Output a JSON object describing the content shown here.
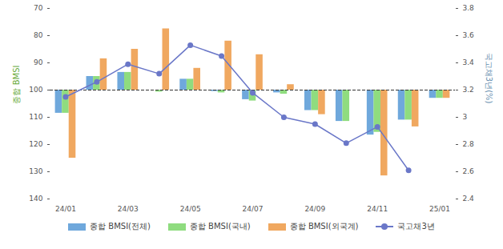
{
  "chart_data": {
    "type": "bar",
    "y_label": "종합 BMSI",
    "y2_label": "국고채3년(%)",
    "categories": [
      "24/01",
      null,
      "24/03",
      null,
      "24/05",
      null,
      "24/07",
      null,
      "24/09",
      null,
      "24/11",
      null,
      "25/01"
    ],
    "baseline": 100,
    "ylim": [
      140,
      70
    ],
    "yticks": [
      70,
      80,
      90,
      100,
      110,
      120,
      130,
      140
    ],
    "y2lim": [
      2.4,
      3.8
    ],
    "y2ticks": [
      2.4,
      2.6,
      2.8,
      3,
      3.2,
      3.4,
      3.6,
      3.8
    ],
    "grid": false,
    "legend": "bottom",
    "series": [
      {
        "name": "종합 BMSI(전체)",
        "type": "bar",
        "color": "#6fa8dc",
        "values": [
          108.5,
          95,
          93.5,
          100,
          96,
          100.5,
          103.5,
          101,
          107.5,
          111.5,
          116.5,
          111,
          103
        ]
      },
      {
        "name": "종합 BMSI(국내)",
        "type": "bar",
        "color": "#8fdc7f",
        "values": [
          108.5,
          95,
          93.5,
          100.7,
          96,
          101,
          104,
          101.5,
          107.5,
          111.5,
          115.5,
          111,
          103
        ]
      },
      {
        "name": "종합 BMSI(외국계)",
        "type": "bar",
        "color": "#f0a860",
        "values": [
          125,
          88.5,
          85,
          77.5,
          92,
          82,
          87,
          98,
          109,
          100,
          131.5,
          113.5,
          103
        ]
      },
      {
        "name": "국고채3년",
        "type": "line",
        "axis": "y2",
        "marker": "circle",
        "color": "#6a77c8",
        "values": [
          3.15,
          3.26,
          3.39,
          3.32,
          3.53,
          3.45,
          3.18,
          3.0,
          2.95,
          2.81,
          2.93,
          2.61,
          null
        ]
      }
    ]
  }
}
